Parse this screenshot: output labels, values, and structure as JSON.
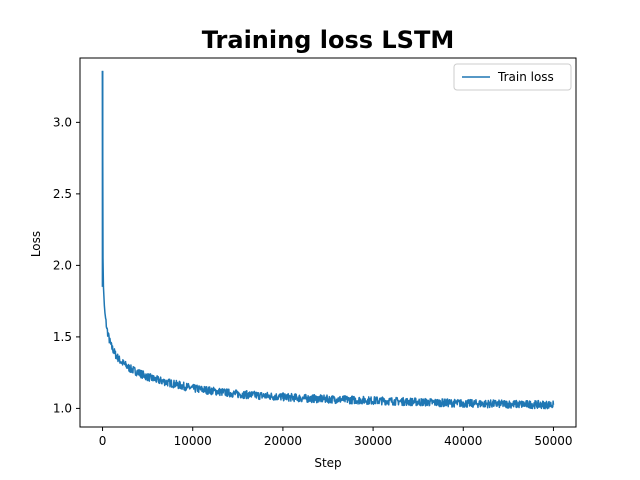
{
  "chart_data": {
    "type": "line",
    "title": "Training loss LSTM",
    "xlabel": "Step",
    "ylabel": "Loss",
    "xlim": [
      -2500,
      52500
    ],
    "ylim": [
      0.87,
      3.45
    ],
    "xticks": [
      0,
      10000,
      20000,
      30000,
      40000,
      50000
    ],
    "yticks": [
      1.0,
      1.5,
      2.0,
      2.5,
      3.0
    ],
    "xtick_labels": [
      "0",
      "10000",
      "20000",
      "30000",
      "40000",
      "50000"
    ],
    "ytick_labels": [
      "1.0",
      "1.5",
      "2.0",
      "2.5",
      "3.0"
    ],
    "grid": false,
    "legend": {
      "position": "top-right",
      "entries": [
        "Train loss"
      ]
    },
    "series": [
      {
        "name": "Train loss",
        "color": "#1f77b4",
        "x": [
          0,
          50,
          100,
          200,
          300,
          500,
          750,
          1000,
          1500,
          2000,
          3000,
          4000,
          5000,
          6000,
          8000,
          10000,
          12500,
          15000,
          17500,
          20000,
          22500,
          25000,
          30000,
          35000,
          40000,
          45000,
          50000
        ],
        "y": [
          3.36,
          2.05,
          1.85,
          1.72,
          1.64,
          1.55,
          1.48,
          1.43,
          1.37,
          1.33,
          1.28,
          1.25,
          1.22,
          1.2,
          1.17,
          1.14,
          1.12,
          1.1,
          1.09,
          1.08,
          1.07,
          1.065,
          1.055,
          1.045,
          1.035,
          1.03,
          1.025
        ]
      }
    ]
  }
}
